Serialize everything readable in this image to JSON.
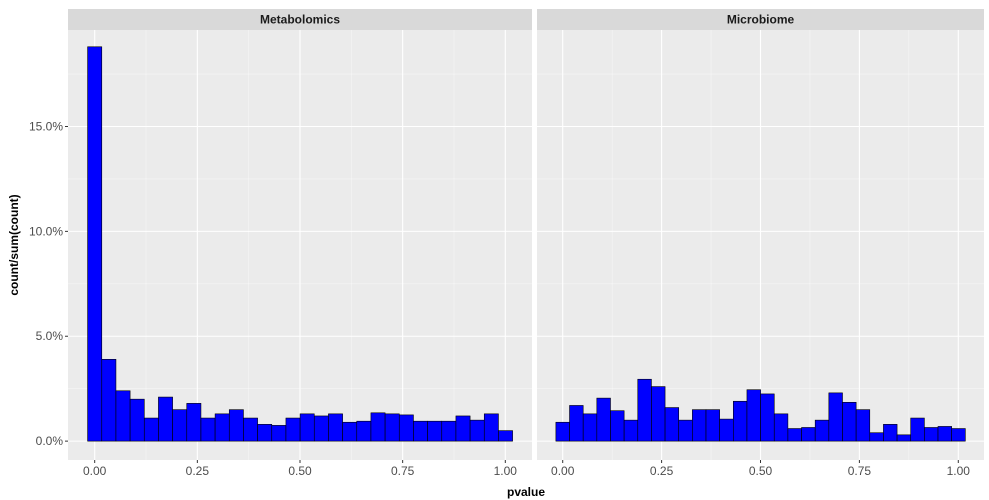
{
  "chart_data": {
    "type": "bar",
    "xlabel": "pvalue",
    "ylabel": "count/sum(count)",
    "x_ticks": [
      "0.00",
      "0.25",
      "0.50",
      "0.75",
      "1.00"
    ],
    "x_tick_values": [
      0,
      0.25,
      0.5,
      0.75,
      1.0
    ],
    "y_ticks": [
      "0.0%",
      "5.0%",
      "10.0%",
      "15.0%"
    ],
    "y_tick_values": [
      0,
      5,
      10,
      15
    ],
    "ylim": [
      -0.9,
      19.6
    ],
    "xlim": [
      -0.065,
      1.065
    ],
    "bin_width": 0.0345,
    "grid": true,
    "colors": {
      "bar_fill": "#0000ff",
      "bar_stroke": "#000000",
      "panel_bg": "#ebebeb",
      "strip_bg": "#d9d9d9",
      "grid": "#ffffff"
    },
    "panels": [
      {
        "title": "Metabolomics",
        "values": [
          18.8,
          3.9,
          2.4,
          2.0,
          1.1,
          2.1,
          1.5,
          1.8,
          1.1,
          1.3,
          1.5,
          1.1,
          0.8,
          0.75,
          1.1,
          1.3,
          1.2,
          1.3,
          0.9,
          0.95,
          1.35,
          1.3,
          1.25,
          0.95,
          0.95,
          0.95,
          1.2,
          1.0,
          1.3,
          0.5
        ]
      },
      {
        "title": "Microbiome",
        "values": [
          0.9,
          1.7,
          1.3,
          2.05,
          1.45,
          1.0,
          2.95,
          2.6,
          1.6,
          1.0,
          1.5,
          1.5,
          1.05,
          1.9,
          2.45,
          2.25,
          1.3,
          0.6,
          0.65,
          1.0,
          2.3,
          1.85,
          1.5,
          0.4,
          0.8,
          0.3,
          1.1,
          0.65,
          0.7,
          0.6
        ]
      }
    ]
  }
}
